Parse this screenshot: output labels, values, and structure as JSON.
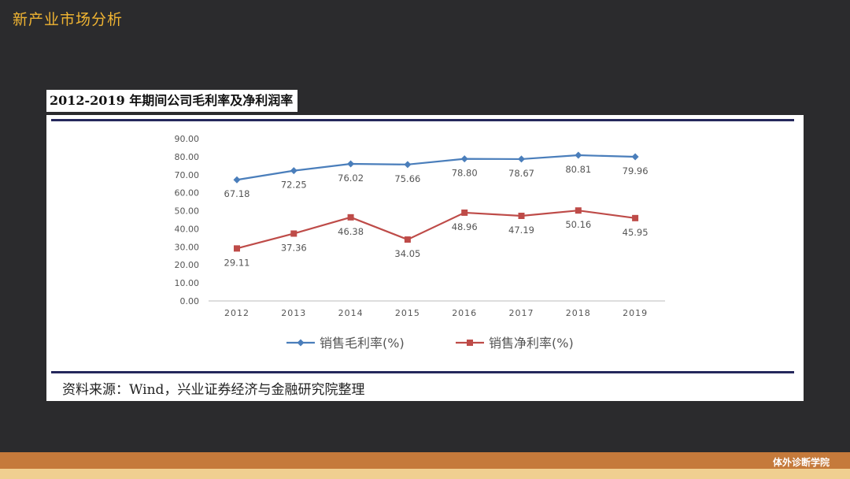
{
  "header": {
    "title": "新产业市场分析"
  },
  "figure": {
    "title": "2012-2019 年期间公司毛利率及净利润率",
    "source": "资料来源：Wind，兴业证券经济与金融研究院整理"
  },
  "footer": {
    "brand": "体外诊断学院"
  },
  "chart_data": {
    "type": "line",
    "title": "",
    "xlabel": "",
    "ylabel": "",
    "categories": [
      "2012",
      "2013",
      "2014",
      "2015",
      "2016",
      "2017",
      "2018",
      "2019"
    ],
    "ylim": [
      0,
      90
    ],
    "yticks": [
      "0.00",
      "10.00",
      "20.00",
      "30.00",
      "40.00",
      "50.00",
      "60.00",
      "70.00",
      "80.00",
      "90.00"
    ],
    "grid": false,
    "legend_position": "bottom",
    "series": [
      {
        "name": "销售毛利率(%)",
        "color": "#4a7ebb",
        "marker": "diamond",
        "values": [
          67.18,
          72.25,
          76.02,
          75.66,
          78.8,
          78.67,
          80.81,
          79.96
        ],
        "labels": [
          "67.18",
          "72.25",
          "76.02",
          "75.66",
          "78.80",
          "78.67",
          "80.81",
          "79.96"
        ]
      },
      {
        "name": "销售净利率(%)",
        "color": "#be4b48",
        "marker": "square",
        "values": [
          29.11,
          37.36,
          46.38,
          34.05,
          48.96,
          47.19,
          50.16,
          45.95
        ],
        "labels": [
          "29.11",
          "37.36",
          "46.38",
          "34.05",
          "48.96",
          "47.19",
          "50.16",
          "45.95"
        ]
      }
    ]
  }
}
